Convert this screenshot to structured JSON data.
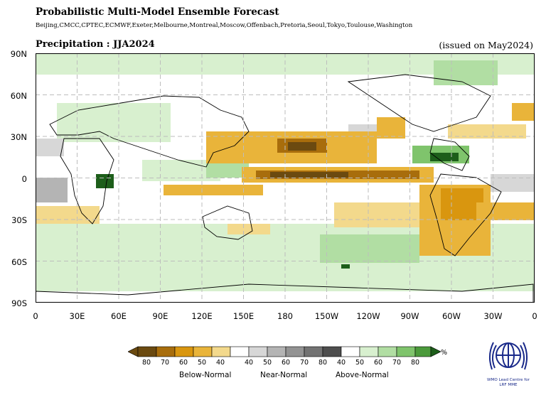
{
  "header": {
    "title": "Probabilistic Multi-Model Ensemble Forecast",
    "centres": "Beijing,CMCC,CPTEC,ECMWF,Exeter,Melbourne,Montreal,Moscow,Offenbach,Pretoria,Seoul,Tokyo,Toulouse,Washington",
    "variable_season": "Precipitation : JJA2024",
    "issued": "(issued on May2024)"
  },
  "axes": {
    "lat_labels": [
      "90N",
      "60N",
      "30N",
      "0",
      "30S",
      "60S",
      "90S"
    ],
    "lon_labels": [
      "0",
      "30E",
      "60E",
      "90E",
      "120E",
      "150E",
      "180",
      "150W",
      "120W",
      "90W",
      "60W",
      "30W",
      "0"
    ]
  },
  "legend": {
    "unit": "%",
    "below_normal_label": "Below-Normal",
    "near_normal_label": "Near-Normal",
    "above_normal_label": "Above-Normal",
    "below_ticks": [
      "80",
      "70",
      "60",
      "50",
      "40"
    ],
    "near_ticks": [
      "40",
      "50",
      "60",
      "70",
      "80"
    ],
    "above_ticks": [
      "40",
      "50",
      "60",
      "70",
      "80"
    ],
    "colors": {
      "below": [
        "#6b4a10",
        "#a86d0c",
        "#d9960f",
        "#e9b43a",
        "#f3d98c"
      ],
      "near": [
        "#d7d7d7",
        "#b4b4b4",
        "#939393",
        "#737373",
        "#4e4e4e"
      ],
      "above": [
        "#d8f0cf",
        "#b1dea3",
        "#7fc46c",
        "#4b9a3b",
        "#1d5e1a"
      ]
    }
  },
  "logo": {
    "line1": "WMO Lead Centre for",
    "line2": "LRF MME"
  }
}
